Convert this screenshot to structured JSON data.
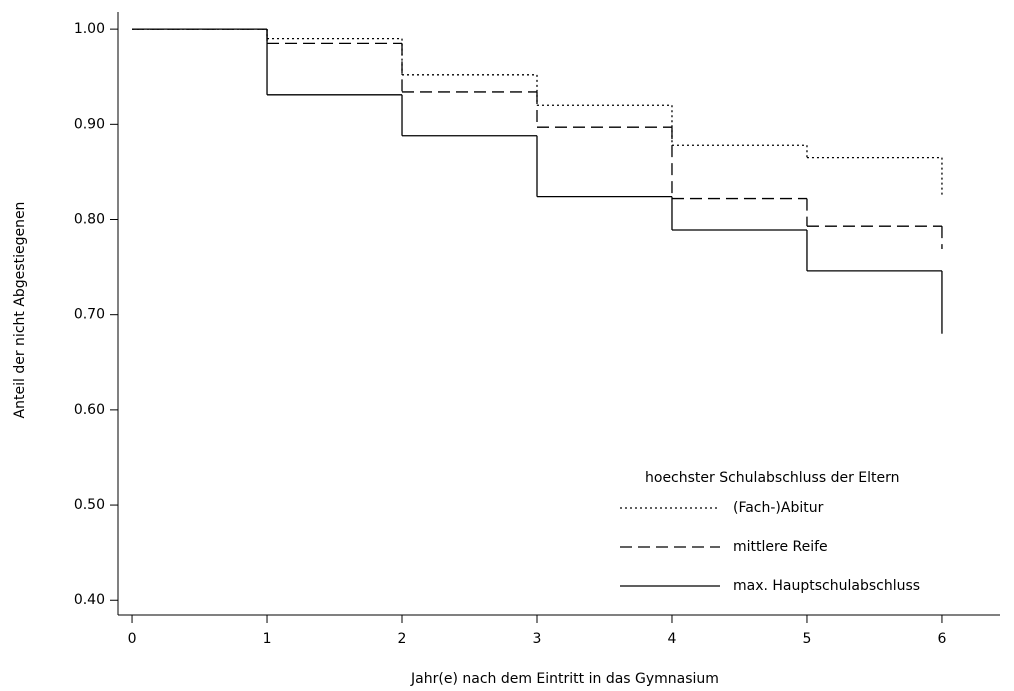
{
  "chart_data": {
    "type": "line",
    "step": "post",
    "xlabel": "Jahr(e) nach dem Eintritt in das Gymnasium",
    "ylabel": "Anteil der nicht Abgestiegenen",
    "x": [
      0,
      1,
      2,
      3,
      4,
      5,
      6
    ],
    "series": [
      {
        "name": "(Fach-)Abitur",
        "color": "#000000",
        "dash": "dotted",
        "values": [
          1.0,
          0.99,
          0.952,
          0.92,
          0.878,
          0.865,
          0.826
        ]
      },
      {
        "name": "mittlere Reife",
        "color": "#000000",
        "dash": "dashed",
        "values": [
          1.0,
          0.985,
          0.934,
          0.897,
          0.822,
          0.793,
          0.769
        ]
      },
      {
        "name": "max. Hauptschulabschluss",
        "color": "#000000",
        "dash": "solid",
        "values": [
          1.0,
          0.931,
          0.888,
          0.824,
          0.789,
          0.746,
          0.68
        ]
      }
    ],
    "legend_title": "hoechster Schulabschluss der Eltern",
    "legend": "lower right",
    "xlim": [
      -0.104,
      6.43
    ],
    "xticks": [
      0,
      1,
      2,
      3,
      4,
      5,
      6
    ],
    "ylim": [
      0.3845,
      1.018
    ],
    "yticks": [
      {
        "value": 0.4,
        "label": "0.40"
      },
      {
        "value": 0.5,
        "label": "0.50"
      },
      {
        "value": 0.6,
        "label": "0.60"
      },
      {
        "value": 0.7,
        "label": "0.70"
      },
      {
        "value": 0.8,
        "label": "0.80"
      },
      {
        "value": 0.9,
        "label": "0.90"
      },
      {
        "value": 1.0,
        "label": "1.00"
      }
    ],
    "grid": false
  }
}
